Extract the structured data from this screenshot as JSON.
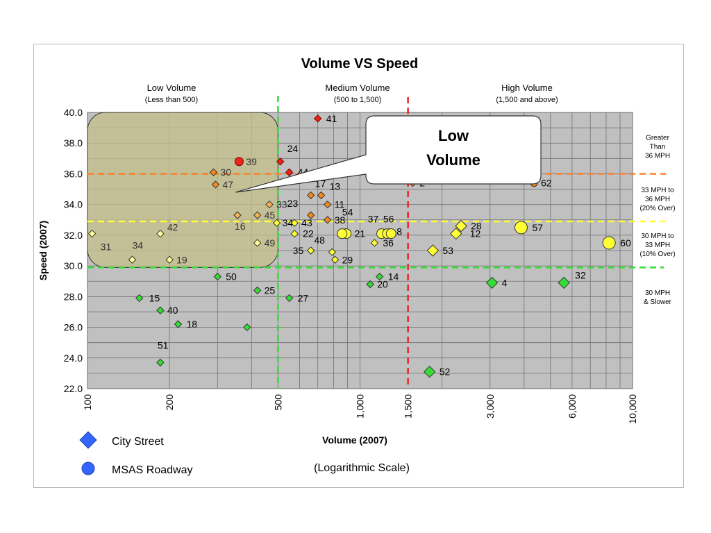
{
  "chart_data": {
    "type": "scatter",
    "title": "Volume VS Speed",
    "xlabel": "Volume (2007)",
    "xlabel_note": "(Logarithmic Scale)",
    "ylabel": "Speed (2007)",
    "x_scale": "log",
    "xlim": [
      100,
      10000
    ],
    "ylim": [
      22,
      40
    ],
    "x_ticks": [
      {
        "value": 100,
        "label": "100"
      },
      {
        "value": 200,
        "label": "200"
      },
      {
        "value": 500,
        "label": "500"
      },
      {
        "value": 1000,
        "label": "1,000"
      },
      {
        "value": 1500,
        "label": "1,500"
      },
      {
        "value": 3000,
        "label": "3,000"
      },
      {
        "value": 6000,
        "label": "6,000"
      },
      {
        "value": 10000,
        "label": "10,000"
      }
    ],
    "y_ticks": [
      "22.0",
      "24.0",
      "26.0",
      "28.0",
      "30.0",
      "32.0",
      "34.0",
      "36.0",
      "38.0",
      "40.0"
    ],
    "grid": true,
    "volume_zones": [
      {
        "title": "Low Volume",
        "subtitle": "(Less than 500)",
        "from": 100,
        "to": 500
      },
      {
        "title": "Medium Volume",
        "subtitle": "(500 to 1,500)",
        "from": 500,
        "to": 1500
      },
      {
        "title": "High Volume",
        "subtitle": "(1,500 and above)",
        "from": 1500,
        "to": 10000
      }
    ],
    "speed_bands": [
      {
        "lines": [
          "Greater",
          "Than",
          "36 MPH"
        ],
        "center": 37.8
      },
      {
        "lines": [
          "33 MPH to",
          "36 MPH",
          "(20% Over)"
        ],
        "center": 34.4
      },
      {
        "lines": [
          "30 MPH to",
          "33 MPH",
          "(10% Over)"
        ],
        "center": 31.4
      },
      {
        "lines": [
          "30 MPH",
          "& Slower"
        ],
        "center": 28.0
      }
    ],
    "reference_lines": [
      {
        "axis": "x",
        "value": 500,
        "color": "#33dd33",
        "style": "dashed"
      },
      {
        "axis": "x",
        "value": 1500,
        "color": "#ee2222",
        "style": "dashed"
      },
      {
        "axis": "y",
        "value": 36.0,
        "color": "#ff7f27",
        "style": "dashed"
      },
      {
        "axis": "y",
        "value": 32.9,
        "color": "#ffff33",
        "style": "dashed"
      },
      {
        "axis": "y",
        "value": 29.9,
        "color": "#33dd33",
        "style": "dashed"
      }
    ],
    "highlight_box": {
      "x_from": 100,
      "x_to": 500,
      "y_from": 29.9,
      "y_to": 40.0,
      "color": "#c4c08a"
    },
    "callout": {
      "text": [
        "Low",
        "Volume"
      ],
      "points_to": {
        "x": 350,
        "y": 34.8
      }
    },
    "legend": [
      {
        "marker": "diamond",
        "label": "City Street",
        "color": "#3366ff"
      },
      {
        "marker": "circle",
        "label": "MSAS Roadway",
        "color": "#3366ff"
      }
    ],
    "colors": {
      "red": "#e8261c",
      "orange": "#f28a1d",
      "lightorange": "#f5b05a",
      "yellow": "#ffff33",
      "paleyellow": "#ffff99",
      "green": "#33dd33"
    },
    "points": [
      {
        "id": "41",
        "x": 700,
        "y": 39.6,
        "shape": "diamond",
        "color": "red"
      },
      {
        "id": "24",
        "x": 510,
        "y": 36.8,
        "shape": "diamond",
        "color": "red"
      },
      {
        "id": "44",
        "x": 550,
        "y": 36.1,
        "shape": "diamond",
        "color": "red"
      },
      {
        "id": "39",
        "x": 360,
        "y": 36.8,
        "shape": "circle",
        "color": "red"
      },
      {
        "id": "30",
        "x": 290,
        "y": 36.1,
        "shape": "diamond",
        "color": "orange"
      },
      {
        "id": "47",
        "x": 295,
        "y": 35.3,
        "shape": "diamond",
        "color": "orange"
      },
      {
        "id": "17",
        "x": 660,
        "y": 34.6,
        "shape": "diamond",
        "color": "orange"
      },
      {
        "id": "13",
        "x": 720,
        "y": 34.6,
        "shape": "diamond",
        "color": "orange"
      },
      {
        "id": "23",
        "x": 660,
        "y": 33.3,
        "shape": "diamond",
        "color": "orange"
      },
      {
        "id": "11",
        "x": 760,
        "y": 34.0,
        "shape": "diamond",
        "color": "orange"
      },
      {
        "id": "38",
        "x": 760,
        "y": 33.0,
        "shape": "diamond",
        "color": "orange"
      },
      {
        "id": "33",
        "x": 465,
        "y": 34.0,
        "shape": "diamond",
        "color": "lightorange"
      },
      {
        "id": "45",
        "x": 420,
        "y": 33.3,
        "shape": "diamond",
        "color": "lightorange"
      },
      {
        "id": "16",
        "x": 355,
        "y": 33.3,
        "shape": "diamond",
        "color": "lightorange"
      },
      {
        "id": "2",
        "x": 1560,
        "y": 35.4,
        "shape": "diamond",
        "color": "orange"
      },
      {
        "id": "62",
        "x": 4350,
        "y": 35.4,
        "shape": "circle",
        "color": "orange"
      },
      {
        "id": "34",
        "x": 495,
        "y": 32.8,
        "shape": "diamond",
        "color": "yellow"
      },
      {
        "id": "43",
        "x": 575,
        "y": 32.8,
        "shape": "diamond",
        "color": "yellow"
      },
      {
        "id": "22",
        "x": 575,
        "y": 32.1,
        "shape": "diamond",
        "color": "yellow"
      },
      {
        "id": "35",
        "x": 660,
        "y": 31.0,
        "shape": "diamond",
        "color": "yellow"
      },
      {
        "id": "48",
        "x": 790,
        "y": 30.9,
        "shape": "diamond",
        "color": "yellow"
      },
      {
        "id": "29",
        "x": 810,
        "y": 30.4,
        "shape": "diamond",
        "color": "yellow"
      },
      {
        "id": "21",
        "x": 890,
        "y": 32.1,
        "shape": "circle",
        "color": "yellow"
      },
      {
        "id": "54",
        "x": 860,
        "y": 32.1,
        "shape": "circle",
        "color": "yellow"
      },
      {
        "id": "37",
        "x": 1200,
        "y": 32.1,
        "shape": "circle",
        "color": "yellow"
      },
      {
        "id": "56",
        "x": 1260,
        "y": 32.1,
        "shape": "circle",
        "color": "yellow"
      },
      {
        "id": "8",
        "x": 1300,
        "y": 32.1,
        "shape": "circle",
        "color": "yellow"
      },
      {
        "id": "36",
        "x": 1130,
        "y": 31.5,
        "shape": "diamond",
        "color": "yellow"
      },
      {
        "id": "53",
        "x": 1850,
        "y": 31.0,
        "shape": "diamond",
        "color": "yellow"
      },
      {
        "id": "12",
        "x": 2250,
        "y": 32.1,
        "shape": "diamond",
        "color": "yellow"
      },
      {
        "id": "28",
        "x": 2350,
        "y": 32.6,
        "shape": "diamond",
        "color": "yellow"
      },
      {
        "id": "57",
        "x": 3900,
        "y": 32.5,
        "shape": "circle",
        "color": "yellow"
      },
      {
        "id": "60",
        "x": 8200,
        "y": 31.5,
        "shape": "circle",
        "color": "yellow"
      },
      {
        "id": "31",
        "x": 104,
        "y": 32.1,
        "shape": "diamond",
        "color": "paleyellow"
      },
      {
        "id": "42",
        "x": 185,
        "y": 32.1,
        "shape": "diamond",
        "color": "paleyellow"
      },
      {
        "id": "34b",
        "x": 146,
        "y": 30.4,
        "shape": "diamond",
        "color": "paleyellow"
      },
      {
        "id": "19",
        "x": 200,
        "y": 30.4,
        "shape": "diamond",
        "color": "paleyellow"
      },
      {
        "id": "49",
        "x": 420,
        "y": 31.5,
        "shape": "diamond",
        "color": "paleyellow"
      },
      {
        "id": "50",
        "x": 300,
        "y": 29.3,
        "shape": "diamond",
        "color": "green"
      },
      {
        "id": "25",
        "x": 420,
        "y": 28.4,
        "shape": "diamond",
        "color": "green"
      },
      {
        "id": "27",
        "x": 550,
        "y": 27.9,
        "shape": "diamond",
        "color": "green"
      },
      {
        "id": "14",
        "x": 1180,
        "y": 29.3,
        "shape": "diamond",
        "color": "green"
      },
      {
        "id": "20",
        "x": 1090,
        "y": 28.8,
        "shape": "diamond",
        "color": "green"
      },
      {
        "id": "4",
        "x": 3050,
        "y": 28.9,
        "shape": "diamond",
        "color": "green"
      },
      {
        "id": "32",
        "x": 5600,
        "y": 28.9,
        "shape": "diamond",
        "color": "green"
      },
      {
        "id": "15",
        "x": 155,
        "y": 27.9,
        "shape": "diamond",
        "color": "green"
      },
      {
        "id": "40",
        "x": 185,
        "y": 27.1,
        "shape": "diamond",
        "color": "green"
      },
      {
        "id": "18",
        "x": 215,
        "y": 26.2,
        "shape": "diamond",
        "color": "green"
      },
      {
        "id": "unlabeled",
        "x": 385,
        "y": 26.0,
        "shape": "diamond",
        "color": "green"
      },
      {
        "id": "51",
        "x": 185,
        "y": 23.7,
        "shape": "diamond",
        "color": "green"
      },
      {
        "id": "52",
        "x": 1800,
        "y": 23.1,
        "shape": "diamond",
        "color": "green"
      }
    ]
  }
}
